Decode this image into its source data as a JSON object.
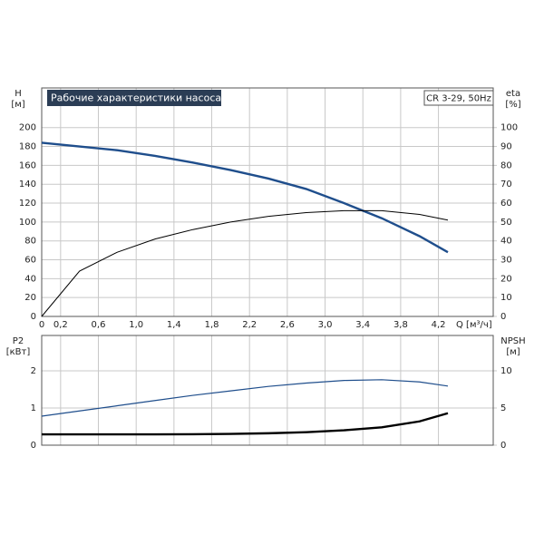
{
  "chart_data": [
    {
      "type": "line",
      "title": "Рабочие характеристики насоса",
      "annotation": "CR 3-29, 50Hz",
      "ylabel": "H",
      "yunit": "[м]",
      "y2label": "eta",
      "y2unit": "[%]",
      "xlabel": "Q [м³/ч]",
      "x": [
        0,
        0.4,
        0.8,
        1.2,
        1.6,
        2.0,
        2.4,
        2.8,
        3.2,
        3.6,
        4.0,
        4.3
      ],
      "series": [
        {
          "color": "#1f4e8c",
          "values": [
            184,
            180,
            176,
            170,
            163,
            155,
            146,
            135,
            120,
            104,
            85,
            68
          ]
        },
        {
          "color": "#000000",
          "axis": "y2",
          "values": [
            0,
            24,
            34,
            41,
            46,
            50,
            53,
            55,
            56,
            56,
            54,
            51
          ]
        }
      ],
      "xlim": [
        0,
        4.78
      ],
      "ylim": [
        0,
        242
      ],
      "y2lim": [
        0,
        121
      ],
      "xticks": [
        0,
        {
          "value": 0.2,
          "label": "0,2"
        },
        {
          "value": 0.6,
          "label": "0,6"
        },
        {
          "value": 1.0,
          "label": "1,0"
        },
        {
          "value": 1.4,
          "label": "1,4"
        },
        {
          "value": 1.8,
          "label": "1,8"
        },
        {
          "value": 2.2,
          "label": "2,2"
        },
        {
          "value": 2.6,
          "label": "2,6"
        },
        {
          "value": 3.0,
          "label": "3,0"
        },
        {
          "value": 3.4,
          "label": "3,4"
        },
        {
          "value": 3.8,
          "label": "3,8"
        },
        {
          "value": 4.2,
          "label": "4,2"
        }
      ],
      "yticks": [
        0,
        20,
        40,
        60,
        80,
        100,
        120,
        140,
        160,
        180,
        200
      ],
      "y2ticks": [
        0,
        10,
        20,
        30,
        40,
        50,
        60,
        70,
        80,
        90,
        100
      ],
      "grid": true
    },
    {
      "type": "line",
      "ylabel": "P2",
      "yunit": "[кВт]",
      "y2label": "NPSH",
      "y2unit": "[м]",
      "x": [
        0,
        0.4,
        0.8,
        1.2,
        1.6,
        2.0,
        2.4,
        2.8,
        3.2,
        3.6,
        4.0,
        4.3
      ],
      "series": [
        {
          "color": "#1f4e8c",
          "values": [
            0.78,
            0.92,
            1.06,
            1.2,
            1.34,
            1.46,
            1.58,
            1.67,
            1.74,
            1.76,
            1.7,
            1.59
          ]
        },
        {
          "color": "#000000",
          "axis": "y2",
          "values": [
            1.45,
            1.45,
            1.45,
            1.45,
            1.47,
            1.52,
            1.6,
            1.75,
            2.0,
            2.4,
            3.2,
            4.3
          ]
        }
      ],
      "xlim": [
        0,
        4.78
      ],
      "ylim": [
        0,
        2.95
      ],
      "y2lim": [
        0,
        14.75
      ],
      "yticks": [
        0,
        1,
        2
      ],
      "y2ticks": [
        0,
        5,
        10
      ],
      "grid": true
    }
  ]
}
